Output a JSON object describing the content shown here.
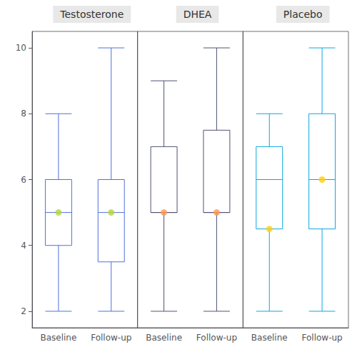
{
  "chart_data": [
    {
      "type": "box",
      "title": "Testosterone",
      "categories": [
        "Baseline",
        "Follow-up"
      ],
      "boxes": [
        {
          "whisker_low": 2,
          "q1": 4,
          "median": 5,
          "q3": 6,
          "whisker_high": 8
        },
        {
          "whisker_low": 2,
          "q1": 3.5,
          "median": 5,
          "q3": 6,
          "whisker_high": 10
        }
      ],
      "mean": [
        5.0,
        5.0
      ],
      "ylim": [
        1.5,
        10.5
      ],
      "yticks": [
        2,
        4,
        6,
        8,
        10
      ],
      "grid": false
    },
    {
      "type": "box",
      "title": "DHEA",
      "categories": [
        "Baseline",
        "Follow-up"
      ],
      "boxes": [
        {
          "whisker_low": 2,
          "q1": 5,
          "median": 5,
          "q3": 7,
          "whisker_high": 9
        },
        {
          "whisker_low": 2,
          "q1": 5,
          "median": 5,
          "q3": 7.5,
          "whisker_high": 10
        }
      ],
      "mean": [
        5.0,
        5.0
      ],
      "ylim": [
        1.5,
        10.5
      ],
      "yticks": [
        2,
        4,
        6,
        8,
        10
      ],
      "grid": false,
      "tick_labels": "x"
    },
    {
      "type": "box",
      "title": "Placebo",
      "categories": [
        "Baseline",
        "Follow-up"
      ],
      "boxes": [
        {
          "whisker_low": 2,
          "q1": 4.5,
          "median": 6,
          "q3": 7,
          "whisker_high": 8
        },
        {
          "whisker_low": 2,
          "q1": 4.5,
          "median": 6,
          "q3": 8,
          "whisker_high": 10
        }
      ],
      "mean": [
        4.5,
        6.0
      ],
      "ylim": [
        1.5,
        10.5
      ],
      "yticks": [
        2,
        4,
        6,
        8,
        10
      ],
      "grid": false,
      "tick_labels": "x"
    }
  ]
}
